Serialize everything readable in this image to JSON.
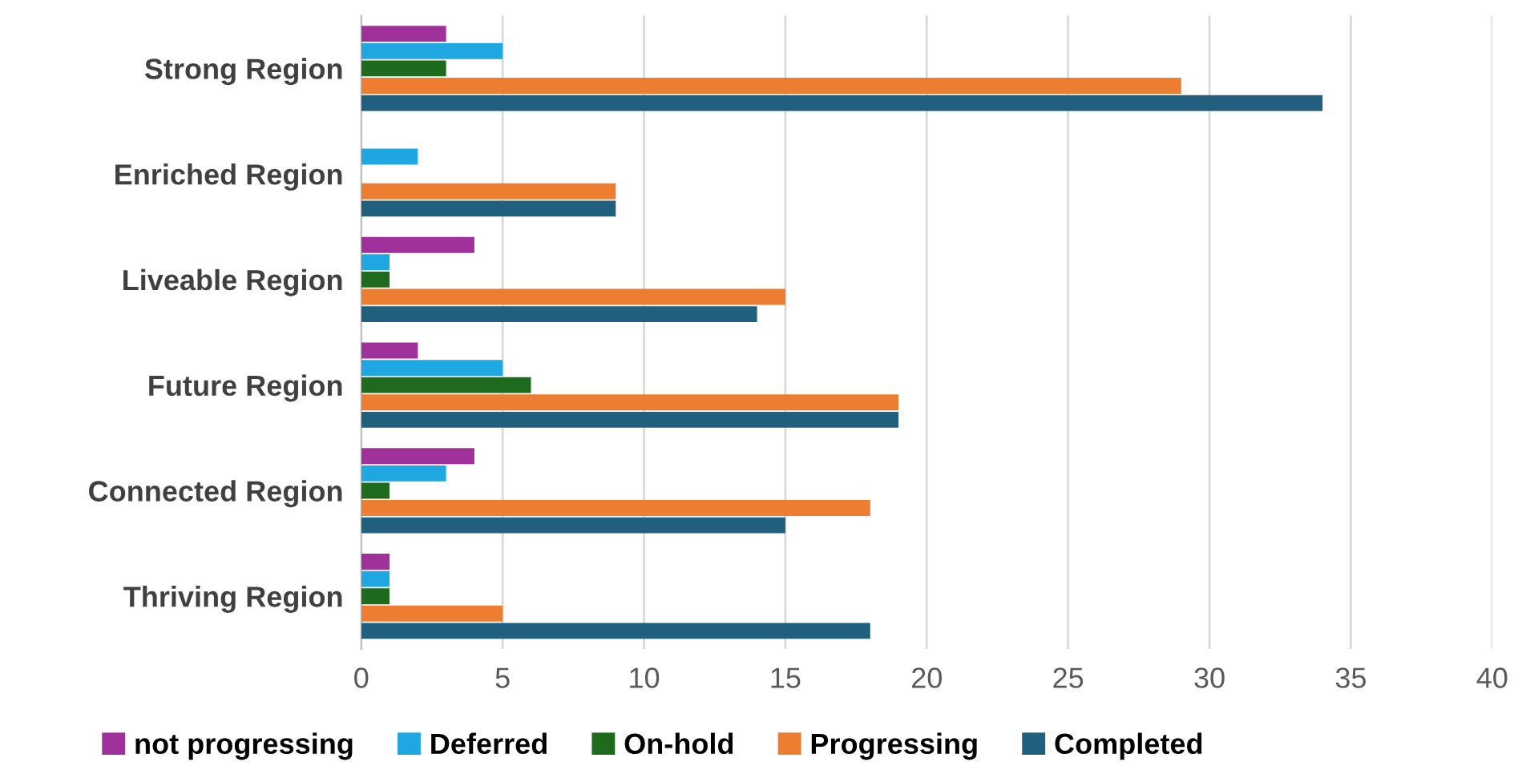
{
  "chart_data": {
    "type": "bar",
    "orientation": "horizontal",
    "categories": [
      "Strong Region",
      "Enriched Region",
      "Liveable Region",
      "Future Region",
      "Connected Region",
      "Thriving Region"
    ],
    "series": [
      {
        "name": "not progressing",
        "color": "#a0309a",
        "values": [
          3,
          0,
          4,
          2,
          4,
          1
        ]
      },
      {
        "name": "Deferred",
        "color": "#1ea7e0",
        "values": [
          5,
          2,
          1,
          5,
          3,
          1
        ]
      },
      {
        "name": "On-hold",
        "color": "#1e6b1e",
        "values": [
          3,
          0,
          1,
          6,
          1,
          1
        ]
      },
      {
        "name": "Progressing",
        "color": "#ed7d31",
        "values": [
          29,
          9,
          15,
          19,
          18,
          5
        ]
      },
      {
        "name": "Completed",
        "color": "#215f7e",
        "values": [
          34,
          9,
          14,
          19,
          15,
          18
        ]
      }
    ],
    "xlim": [
      0,
      40
    ],
    "xticks": [
      0,
      5,
      10,
      15,
      20,
      25,
      30,
      35,
      40
    ],
    "grid": "x",
    "legend": "bottom"
  }
}
